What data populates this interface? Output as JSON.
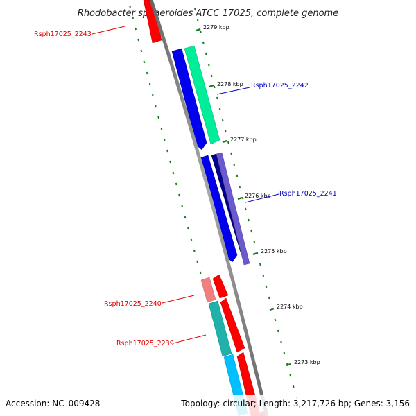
{
  "title": "Rhodobacter sphaeroides ATCC 17025, complete genome",
  "footer": {
    "accession": "Accession: NC_009428",
    "summary": "Topology: circular; Length: 3,217,726 bp; Genes: 3,156"
  },
  "ticks": [
    {
      "label": "2279 kbp"
    },
    {
      "label": "2278 kbp"
    },
    {
      "label": "2277 kbp"
    },
    {
      "label": "2276 kbp"
    },
    {
      "label": "2275 kbp"
    },
    {
      "label": "2274 kbp"
    },
    {
      "label": "2273 kbp"
    }
  ],
  "gene_labels": [
    {
      "text": "Rsph17025_2243",
      "color": "#e00000"
    },
    {
      "text": "Rsph17025_2242",
      "color": "#0000c0"
    },
    {
      "text": "Rsph17025_2241",
      "color": "#0000c0"
    },
    {
      "text": "Rsph17025_2240",
      "color": "#e00000"
    },
    {
      "text": "Rsph17025_2239",
      "color": "#e00000"
    }
  ],
  "colors": {
    "backbone": "#888888",
    "tick_dash": "#1a7a1a",
    "forward_cds": "#ff0000",
    "reverse_cds": "#0000ee",
    "aqua_feature": "#00ee99",
    "navy_feature": "#00008b",
    "slate_feature": "#6a5acd",
    "pink_feature": "#f08080",
    "teal_feature": "#20b2aa",
    "sky_feature": "#00bfff"
  }
}
